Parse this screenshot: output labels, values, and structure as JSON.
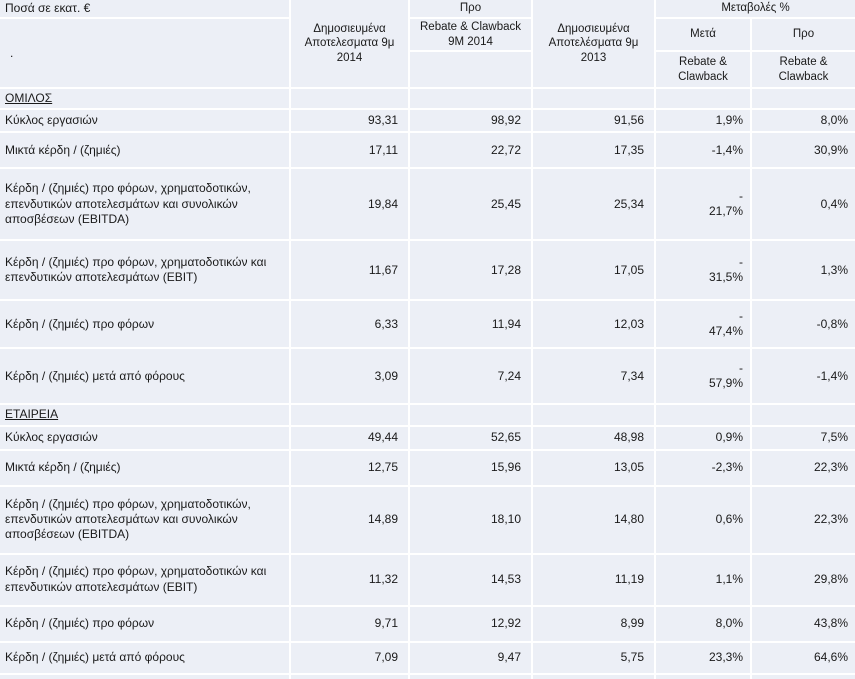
{
  "colors": {
    "cell_fill": "#ECEFF6",
    "gridline": "#FFFFFF",
    "text": "#1A1A1A"
  },
  "header": {
    "corner_note": "Ποσά σε εκατ. €",
    "corner_dot": ".",
    "col_published_2014": "Δημοσιευμένα Αποτελεσματα 9μ 2014",
    "col_pre_top": "Προ",
    "col_pre_sub": "Rebate & Clawback 9M 2014",
    "col_published_2013": "Δημοσιευμένα Αποτελέσματα 9μ 2013",
    "changes_title": "Μεταβολές %",
    "changes_after": "Μετά",
    "changes_after_sub": "Rebate & Clawback",
    "changes_pre": "Προ",
    "changes_pre_sub": "Rebate & Clawback"
  },
  "table": {
    "columns": [
      "",
      "Δημοσιευμένα Αποτελεσματα 9μ 2014",
      "Προ Rebate & Clawback 9M 2014",
      "Δημοσιευμένα Αποτελέσματα 9μ 2013",
      "Μεταβολές % Μετά Rebate & Clawback",
      "Μεταβολές % Προ Rebate & Clawback"
    ],
    "rows": [
      {
        "section": true,
        "cells": [
          "ΟΜΙΛΟΣ",
          "",
          "",
          "",
          "",
          ""
        ]
      },
      {
        "section": false,
        "cells": [
          "Κύκλος εργασιών",
          "93,31",
          "98,92",
          "91,56",
          "1,9%",
          "8,0%"
        ]
      },
      {
        "section": false,
        "cells": [
          "Μικτά κέρδη / (ζημιές)",
          "17,11",
          "22,72",
          "17,35",
          "-1,4%",
          "30,9%"
        ]
      },
      {
        "section": false,
        "cells": [
          "Κέρδη / (ζημιές) προ φόρων, χρηματοδοτικών, επενδυτικών αποτελεσμάτων και συνολικών αποσβέσεων (EBITDA)",
          "19,84",
          "25,45",
          "25,34",
          "-\n21,7%",
          "0,4%"
        ]
      },
      {
        "section": false,
        "cells": [
          "Κέρδη / (ζημιές) προ φόρων, χρηματοδοτικών και επενδυτικών αποτελεσμάτων (EBIT)",
          "11,67",
          "17,28",
          "17,05",
          "-\n31,5%",
          "1,3%"
        ]
      },
      {
        "section": false,
        "cells": [
          "Κέρδη / (ζημιές) προ φόρων",
          "6,33",
          "11,94",
          "12,03",
          "-\n47,4%",
          "-0,8%"
        ]
      },
      {
        "section": false,
        "cells": [
          "Κέρδη / (ζημιές) μετά από φόρους",
          "3,09",
          "7,24",
          "7,34",
          "-\n57,9%",
          "-1,4%"
        ]
      },
      {
        "section": true,
        "cells": [
          "ΕΤΑΙΡΕΙΑ",
          "",
          "",
          "",
          "",
          ""
        ]
      },
      {
        "section": false,
        "cells": [
          "Κύκλος εργασιών",
          "49,44",
          "52,65",
          "48,98",
          "0,9%",
          "7,5%"
        ]
      },
      {
        "section": false,
        "cells": [
          "Μικτά κέρδη / (ζημιές)",
          "12,75",
          "15,96",
          "13,05",
          "-2,3%",
          "22,3%"
        ]
      },
      {
        "section": false,
        "cells": [
          "Κέρδη / (ζημιές) προ φόρων, χρηματοδοτικών, επενδυτικών αποτελεσμάτων και συνολικών αποσβέσεων (EBITDA)",
          "14,89",
          "18,10",
          "14,80",
          "0,6%",
          "22,3%"
        ]
      },
      {
        "section": false,
        "cells": [
          "Κέρδη / (ζημιές) προ φόρων, χρηματοδοτικών και επενδυτικών αποτελεσμάτων (EBIT)",
          "11,32",
          "14,53",
          "11,19",
          "1,1%",
          "29,8%"
        ]
      },
      {
        "section": false,
        "cells": [
          "Κέρδη / (ζημιές) προ φόρων",
          "9,71",
          "12,92",
          "8,99",
          "8,0%",
          "43,8%"
        ]
      },
      {
        "section": false,
        "cells": [
          "Κέρδη / (ζημιές) μετά από φόρους",
          "7,09",
          "9,47",
          "5,75",
          "23,3%",
          "64,6%"
        ]
      },
      {
        "section": false,
        "cells": [
          "",
          "",
          "",
          "",
          "",
          ""
        ]
      }
    ]
  }
}
